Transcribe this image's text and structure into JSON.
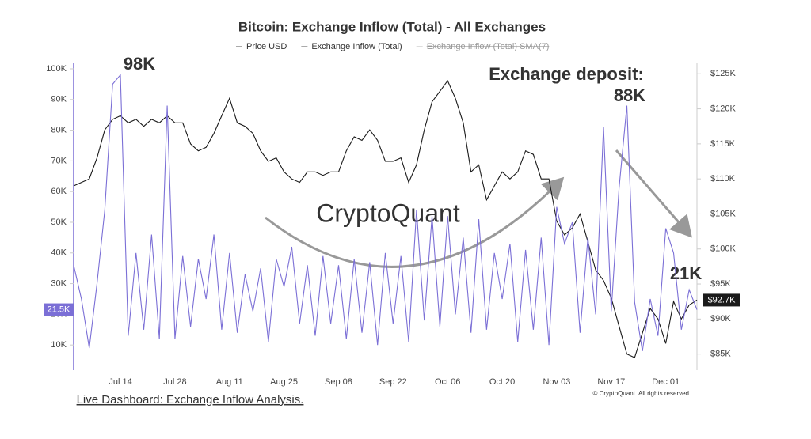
{
  "chart_data": {
    "type": "line",
    "title": "Bitcoin: Exchange Inflow (Total) - All Exchanges",
    "categories": [
      null,
      null,
      null,
      null,
      null,
      null,
      "Jul 14",
      null,
      null,
      null,
      null,
      null,
      null,
      "Jul 28",
      null,
      null,
      null,
      null,
      null,
      null,
      "Aug 11",
      null,
      null,
      null,
      null,
      null,
      null,
      "Aug 25",
      null,
      null,
      null,
      null,
      null,
      null,
      "Sep 08",
      null,
      null,
      null,
      null,
      null,
      null,
      "Sep 22",
      null,
      null,
      null,
      null,
      null,
      null,
      "Oct 06",
      null,
      null,
      null,
      null,
      null,
      null,
      "Oct 20",
      null,
      null,
      null,
      null,
      null,
      null,
      "Nov 03",
      null,
      null,
      null,
      null,
      null,
      null,
      "Nov 17",
      null,
      null,
      null,
      null,
      null,
      null,
      "Dec 01",
      null,
      null,
      null,
      null
    ],
    "series": [
      {
        "name": "Price USD",
        "color": "#1a1a1a",
        "axis": "y2",
        "current_label": "$92.7K",
        "values": [
          109000,
          109500,
          110000,
          113000,
          117000,
          118500,
          119000,
          118000,
          118500,
          117500,
          118500,
          118000,
          119000,
          118000,
          118000,
          115000,
          114000,
          114500,
          116500,
          119000,
          121500,
          118000,
          117500,
          116500,
          114000,
          112500,
          113000,
          111000,
          110000,
          109500,
          111000,
          111000,
          110500,
          111000,
          111000,
          114000,
          116000,
          115500,
          117000,
          115500,
          112500,
          112500,
          113000,
          109500,
          112000,
          117000,
          121000,
          122500,
          124000,
          121500,
          118000,
          111000,
          112000,
          107000,
          109000,
          111000,
          110000,
          111000,
          114000,
          113500,
          110000,
          110000,
          104000,
          102000,
          103000,
          105000,
          101000,
          97000,
          95500,
          93000,
          89000,
          85000,
          84500,
          88000,
          91500,
          90000,
          86500,
          92500,
          90000,
          92000,
          92700
        ]
      },
      {
        "name": "Exchange Inflow (Total)",
        "color": "#7b6fd6",
        "current_label": "21.5K",
        "values": [
          36000,
          25000,
          9000,
          30000,
          54000,
          95000,
          98000,
          13000,
          40000,
          15000,
          46000,
          12000,
          88000,
          12000,
          39000,
          16000,
          38000,
          25000,
          46000,
          15000,
          40000,
          14000,
          33000,
          21000,
          35000,
          11000,
          38000,
          29000,
          42000,
          17000,
          36000,
          13000,
          39000,
          17000,
          36000,
          12000,
          38000,
          14000,
          37000,
          10000,
          40000,
          17000,
          39000,
          11000,
          54000,
          18000,
          52000,
          16000,
          52000,
          20000,
          45000,
          14000,
          51000,
          15000,
          40000,
          25000,
          43000,
          11000,
          41000,
          15000,
          45000,
          10000,
          55000,
          43000,
          50000,
          14000,
          45000,
          20000,
          81000,
          21000,
          61000,
          88000,
          24000,
          8000,
          25000,
          13000,
          48000,
          40000,
          15000,
          28000,
          21500
        ]
      }
    ],
    "hidden_series": [
      {
        "name": "Exchange Inflow (Total) SMA(7)",
        "color": "#aaaaaa"
      }
    ],
    "ylim": [
      1800,
      101800
    ],
    "yticks": [
      {
        "value": 10000,
        "label": "10K"
      },
      {
        "value": 20000,
        "label": "20K"
      },
      {
        "value": 30000,
        "label": "30K"
      },
      {
        "value": 40000,
        "label": "40K"
      },
      {
        "value": 50000,
        "label": "50K"
      },
      {
        "value": 60000,
        "label": "60K"
      },
      {
        "value": 70000,
        "label": "70K"
      },
      {
        "value": 80000,
        "label": "80K"
      },
      {
        "value": 90000,
        "label": "90K"
      },
      {
        "value": 100000,
        "label": "100K"
      }
    ],
    "y2lim": [
      82700,
      126500
    ],
    "y2ticks": [
      {
        "value": 85000,
        "label": "$85K"
      },
      {
        "value": 90000,
        "label": "$90K"
      },
      {
        "value": 95000,
        "label": "$95K"
      },
      {
        "value": 100000,
        "label": "$100K"
      },
      {
        "value": 105000,
        "label": "$105K"
      },
      {
        "value": 110000,
        "label": "$110K"
      },
      {
        "value": 115000,
        "label": "$115K"
      },
      {
        "value": 120000,
        "label": "$120K"
      },
      {
        "value": 125000,
        "label": "$125K"
      }
    ],
    "grid": false,
    "annotations": [
      "98K",
      "Exchange deposit:",
      "88K",
      "21K"
    ],
    "watermark": "CryptoQuant",
    "copyright": "© CryptoQuant. All rights reserved",
    "link": "Live Dashboard: Exchange Inflow Analysis."
  }
}
